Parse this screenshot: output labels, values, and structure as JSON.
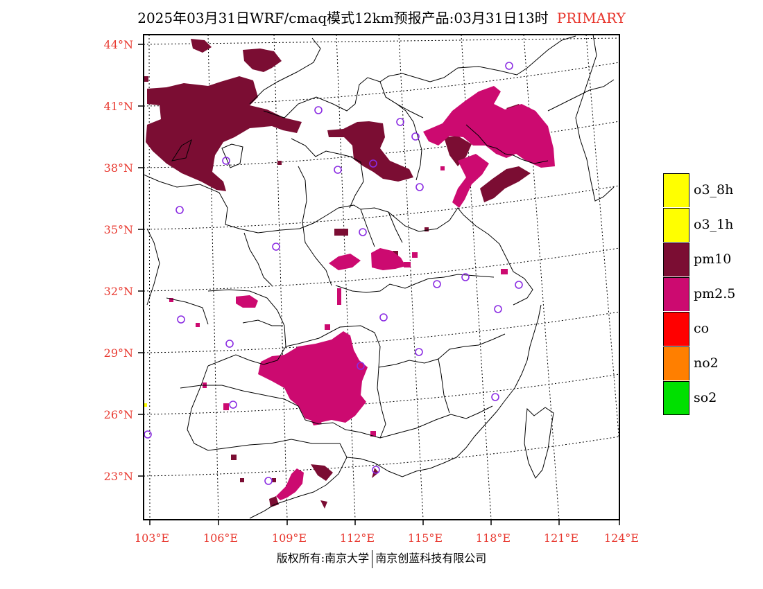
{
  "title": {
    "main": "2025年03月31日WRF/cmaq模式12km预报产品:03月31日13时",
    "tag": "PRIMARY"
  },
  "colors": {
    "o3_8h": "#ffff00",
    "o3_1h": "#ffff00",
    "pm10": "#7b0d33",
    "pm2_5": "#cc0a70",
    "co": "#ff0000",
    "no2": "#ff7f00",
    "so2": "#00e000",
    "station": "#8a2be2",
    "axis_label": "#e8382f"
  },
  "map": {
    "lat_labels": [
      "44°N",
      "41°N",
      "38°N",
      "35°N",
      "32°N",
      "29°N",
      "26°N",
      "23°N"
    ],
    "lon_labels": [
      "103°E",
      "106°E",
      "109°E",
      "112°E",
      "115°E",
      "118°E",
      "121°E",
      "124°E"
    ]
  },
  "legend": [
    {
      "label": "o3_8h",
      "color": "#ffff00"
    },
    {
      "label": "o3_1h",
      "color": "#ffff00"
    },
    {
      "label": "pm10",
      "color": "#7b0d33"
    },
    {
      "label": "pm2.5",
      "color": "#cc0a70"
    },
    {
      "label": "co",
      "color": "#ff0000"
    },
    {
      "label": "no2",
      "color": "#ff7f00"
    },
    {
      "label": "so2",
      "color": "#00e000"
    }
  ],
  "copyright": {
    "left": "版权所有:南京大学",
    "right": "南京创蓝科技有限公司"
  }
}
